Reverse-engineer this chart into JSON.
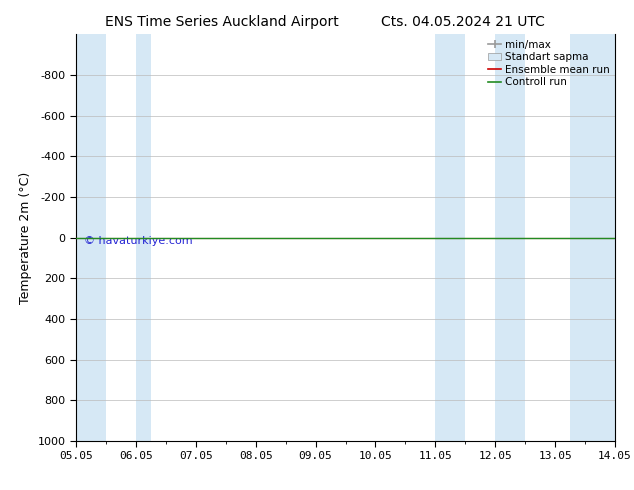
{
  "title_left": "ENS Time Series Auckland Airport",
  "title_right": "Cts. 04.05.2024 21 UTC",
  "ylabel": "Temperature 2m (°C)",
  "watermark": "© havaturkiye.com",
  "xlim_left": 0,
  "xlim_right": 9,
  "ylim_top": -1000,
  "ylim_bottom": 1000,
  "yticks": [
    -800,
    -600,
    -400,
    -200,
    0,
    200,
    400,
    600,
    800,
    1000
  ],
  "xtick_labels": [
    "05.05",
    "06.05",
    "07.05",
    "08.05",
    "09.05",
    "10.05",
    "11.05",
    "12.05",
    "13.05",
    "14.05"
  ],
  "xtick_positions": [
    0,
    1,
    2,
    3,
    4,
    5,
    6,
    7,
    8,
    9
  ],
  "shaded_bands": [
    {
      "x_start": 0.0,
      "x_end": 0.5
    },
    {
      "x_start": 1.0,
      "x_end": 1.25
    },
    {
      "x_start": 6.0,
      "x_end": 6.5
    },
    {
      "x_start": 7.0,
      "x_end": 7.5
    },
    {
      "x_start": 8.25,
      "x_end": 9.0
    }
  ],
  "shade_color": "#d6e8f5",
  "control_run_y": 0,
  "ensemble_mean_y": 0,
  "control_run_color": "#228B22",
  "ensemble_mean_color": "#cc0000",
  "minmax_color": "#999999",
  "stddev_facecolor": "#d6e8f5",
  "stddev_edgecolor": "#999999",
  "background_color": "#ffffff",
  "legend_fontsize": 7.5,
  "title_fontsize": 10,
  "ylabel_fontsize": 9,
  "tick_fontsize": 8
}
